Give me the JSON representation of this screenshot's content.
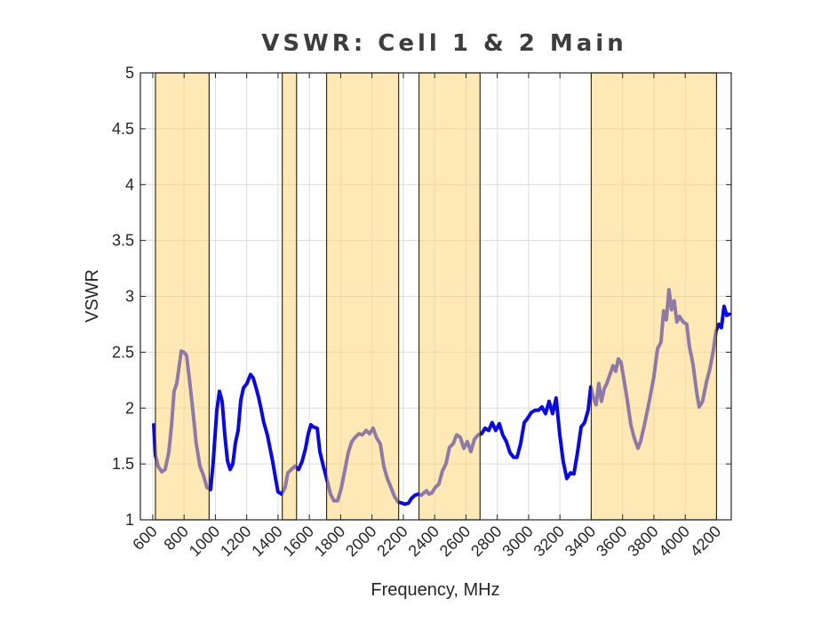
{
  "chart_data": {
    "type": "line",
    "title": "VSWR: Cell 1 & 2 Main",
    "xlabel": "Frequency, MHz",
    "ylabel": "VSWR",
    "xlim": [
      521,
      4294
    ],
    "ylim": [
      1,
      5
    ],
    "grid": true,
    "x_ticks": [
      600,
      800,
      1000,
      1200,
      1400,
      1600,
      1800,
      2000,
      2200,
      2400,
      2600,
      2800,
      3000,
      3200,
      3400,
      3600,
      3800,
      4000,
      4200
    ],
    "x_tick_labels": [
      "600",
      "800",
      "1000",
      "1200",
      "1400",
      "1600",
      "1800",
      "2000",
      "2200",
      "2400",
      "2600",
      "2800",
      "3000",
      "3200",
      "3400",
      "3600",
      "3800",
      "4000",
      "4200"
    ],
    "y_ticks": [
      1,
      1.5,
      2,
      2.5,
      3,
      3.5,
      4,
      4.5,
      5
    ],
    "y_tick_labels": [
      "1",
      "1.5",
      "2",
      "2.5",
      "3",
      "3.5",
      "4",
      "4.5",
      "5"
    ],
    "highlight_bands": [
      {
        "start": 617,
        "end": 960
      },
      {
        "start": 1427,
        "end": 1518
      },
      {
        "start": 1710,
        "end": 2170
      },
      {
        "start": 2300,
        "end": 2690
      },
      {
        "start": 3400,
        "end": 4200
      }
    ],
    "colors": {
      "line": "#0a0adc",
      "band_fill": "#fdd77a",
      "band_opacity": 0.55,
      "band_edge": "#3a2f10",
      "grid": "#dcdcdc",
      "axis": "#262626",
      "title": "#3d3d3d"
    },
    "series": [
      {
        "name": "VSWR",
        "x": [
          606,
          617,
          634,
          657,
          679,
          702,
          719,
          736,
          753,
          770,
          782,
          799,
          816,
          833,
          855,
          878,
          901,
          923,
          946,
          969,
          986,
          1009,
          1026,
          1043,
          1060,
          1077,
          1094,
          1111,
          1128,
          1145,
          1162,
          1179,
          1201,
          1224,
          1241,
          1258,
          1275,
          1292,
          1309,
          1332,
          1349,
          1366,
          1383,
          1400,
          1423,
          1445,
          1462,
          1485,
          1508,
          1531,
          1553,
          1576,
          1593,
          1610,
          1627,
          1650,
          1667,
          1689,
          1712,
          1735,
          1757,
          1780,
          1803,
          1826,
          1848,
          1871,
          1894,
          1916,
          1939,
          1962,
          1984,
          2007,
          2030,
          2053,
          2075,
          2098,
          2121,
          2143,
          2166,
          2189,
          2211,
          2234,
          2251,
          2274,
          2297,
          2314,
          2331,
          2348,
          2365,
          2382,
          2404,
          2427,
          2450,
          2472,
          2495,
          2518,
          2540,
          2563,
          2586,
          2609,
          2631,
          2654,
          2677,
          2699,
          2722,
          2745,
          2767,
          2790,
          2813,
          2835,
          2858,
          2881,
          2904,
          2926,
          2949,
          2972,
          2994,
          3017,
          3040,
          3062,
          3085,
          3108,
          3131,
          3153,
          3176,
          3199,
          3221,
          3244,
          3267,
          3289,
          3312,
          3335,
          3357,
          3380,
          3397,
          3414,
          3431,
          3448,
          3465,
          3482,
          3499,
          3522,
          3539,
          3556,
          3573,
          3590,
          3607,
          3630,
          3653,
          3675,
          3698,
          3715,
          3738,
          3760,
          3777,
          3800,
          3823,
          3845,
          3862,
          3879,
          3896,
          3913,
          3930,
          3947,
          3964,
          3987,
          4010,
          4027,
          4050,
          4072,
          4089,
          4111,
          4135,
          4157,
          4179,
          4197,
          4214,
          4231,
          4248,
          4265,
          4282
        ],
        "values": [
          1.85,
          1.58,
          1.48,
          1.43,
          1.45,
          1.6,
          1.83,
          2.15,
          2.22,
          2.39,
          2.51,
          2.5,
          2.47,
          2.27,
          1.99,
          1.68,
          1.48,
          1.4,
          1.29,
          1.27,
          1.52,
          1.98,
          2.15,
          2.06,
          1.76,
          1.53,
          1.45,
          1.5,
          1.69,
          1.8,
          2.07,
          2.18,
          2.22,
          2.3,
          2.27,
          2.19,
          2.1,
          1.99,
          1.87,
          1.76,
          1.64,
          1.52,
          1.38,
          1.25,
          1.23,
          1.29,
          1.42,
          1.45,
          1.48,
          1.45,
          1.52,
          1.64,
          1.77,
          1.85,
          1.83,
          1.82,
          1.61,
          1.48,
          1.36,
          1.23,
          1.17,
          1.17,
          1.28,
          1.44,
          1.6,
          1.7,
          1.74,
          1.77,
          1.76,
          1.8,
          1.77,
          1.82,
          1.73,
          1.68,
          1.48,
          1.37,
          1.29,
          1.21,
          1.16,
          1.15,
          1.14,
          1.15,
          1.19,
          1.22,
          1.23,
          1.22,
          1.24,
          1.26,
          1.23,
          1.24,
          1.29,
          1.32,
          1.44,
          1.5,
          1.65,
          1.68,
          1.76,
          1.74,
          1.64,
          1.7,
          1.61,
          1.72,
          1.76,
          1.77,
          1.82,
          1.8,
          1.87,
          1.8,
          1.86,
          1.76,
          1.7,
          1.6,
          1.56,
          1.56,
          1.68,
          1.87,
          1.91,
          1.96,
          1.98,
          1.98,
          2.01,
          1.95,
          2.06,
          1.95,
          2.09,
          1.76,
          1.52,
          1.37,
          1.42,
          1.41,
          1.6,
          1.83,
          1.87,
          1.98,
          2.19,
          2.09,
          2.03,
          2.22,
          2.06,
          2.17,
          2.22,
          2.31,
          2.38,
          2.33,
          2.44,
          2.41,
          2.27,
          2.07,
          1.85,
          1.73,
          1.64,
          1.7,
          1.84,
          1.99,
          2.11,
          2.28,
          2.53,
          2.59,
          2.87,
          2.79,
          3.06,
          2.88,
          2.96,
          2.77,
          2.82,
          2.77,
          2.75,
          2.55,
          2.39,
          2.15,
          2.01,
          2.06,
          2.23,
          2.35,
          2.51,
          2.69,
          2.75,
          2.72,
          2.91,
          2.83,
          2.84
        ]
      }
    ]
  }
}
